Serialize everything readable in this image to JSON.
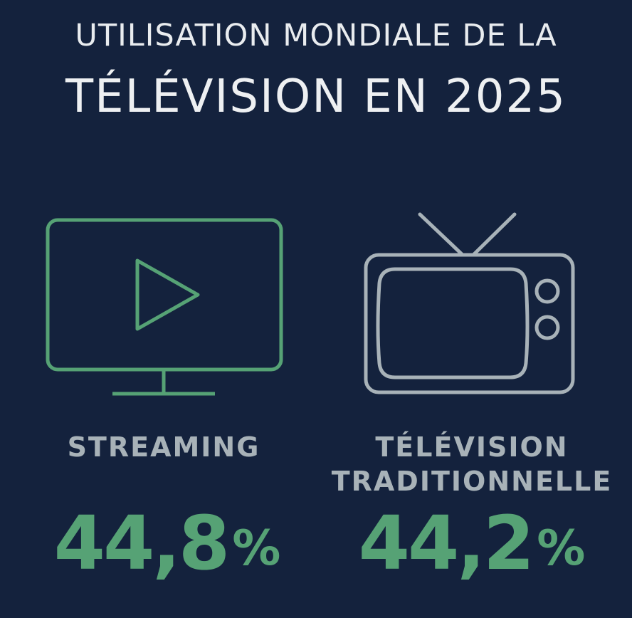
{
  "title": {
    "line1": "UTILISATION MONDIALE DE LA",
    "line2": "TÉLÉVISION EN 2025"
  },
  "items": [
    {
      "icon": "streaming-tv-play-icon",
      "label": "STREAMING",
      "value": "44,8",
      "unit": "%"
    },
    {
      "icon": "retro-tv-antenna-icon",
      "label_line1": "TÉLÉVISION",
      "label_line2": "TRADITIONNELLE",
      "value": "44,2",
      "unit": "%"
    }
  ],
  "colors": {
    "background": "#14223d",
    "accent_green": "#56a275",
    "label_gray": "#a8b2b8",
    "title_white": "#eef0f2"
  }
}
